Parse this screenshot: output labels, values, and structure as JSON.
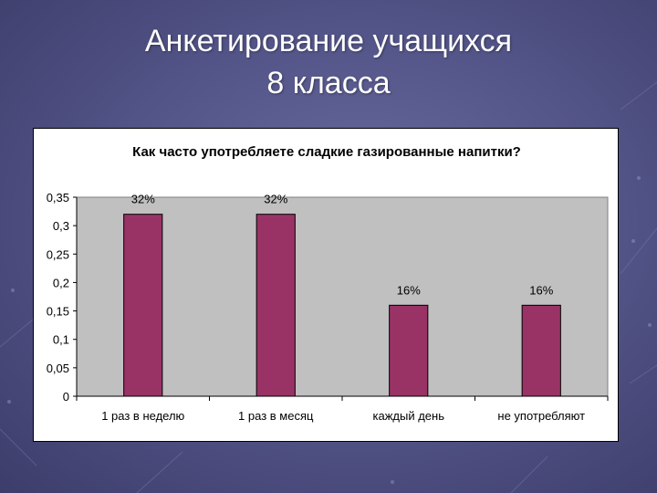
{
  "slide": {
    "title_line1": "Анкетирование учащихся",
    "title_line2": "8 класса"
  },
  "colors": {
    "bar": "#993366",
    "plot_background": "#c0c0c0",
    "slide_background": "#55568a"
  },
  "chart_data": {
    "type": "bar",
    "title": "Как часто употребляете сладкие газированные напитки?",
    "categories": [
      "1 раз в неделю",
      "1 раз в месяц",
      "каждый день",
      "не употребляют"
    ],
    "values": [
      0.32,
      0.32,
      0.16,
      0.16
    ],
    "data_labels": [
      "32%",
      "32%",
      "16%",
      "16%"
    ],
    "yticks": [
      "0",
      "0,05",
      "0,1",
      "0,15",
      "0,2",
      "0,25",
      "0,3",
      "0,35"
    ],
    "ylim": [
      0,
      0.35
    ],
    "grid": false,
    "legend": "none"
  }
}
